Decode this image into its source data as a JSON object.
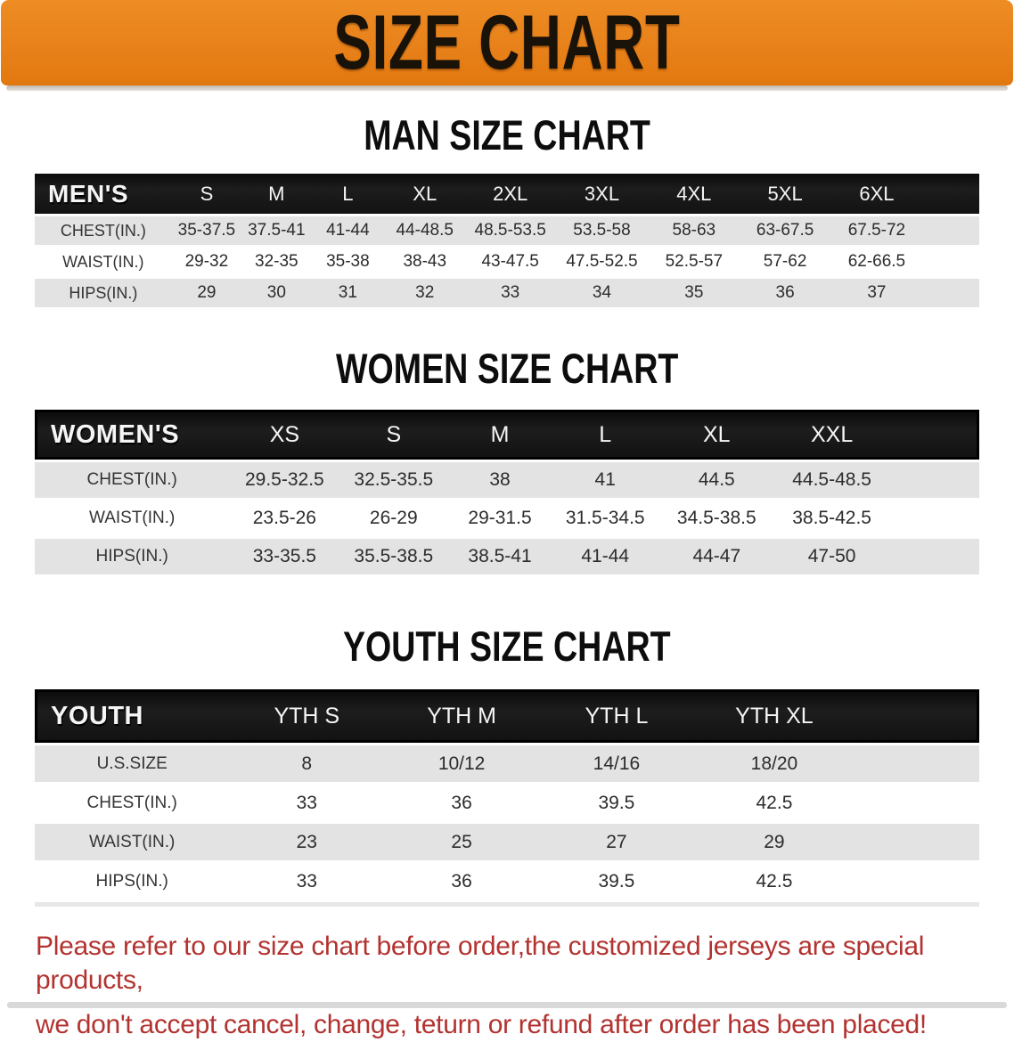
{
  "banner": {
    "title": "SIZE CHART",
    "bg_color": "#E8811A",
    "text_color": "#181208"
  },
  "sections": [
    {
      "heading": "MAN SIZE CHART",
      "header_label": "MEN'S",
      "columns": [
        "S",
        "M",
        "L",
        "XL",
        "2XL",
        "3XL",
        "4XL",
        "5XL",
        "6XL"
      ],
      "rows": [
        {
          "label": "CHEST(IN.)",
          "values": [
            "35-37.5",
            "37.5-41",
            "41-44",
            "44-48.5",
            "48.5-53.5",
            "53.5-58",
            "58-63",
            "63-67.5",
            "67.5-72"
          ]
        },
        {
          "label": "WAIST(IN.)",
          "values": [
            "29-32",
            "32-35",
            "35-38",
            "38-43",
            "43-47.5",
            "47.5-52.5",
            "52.5-57",
            "57-62",
            "62-66.5"
          ]
        },
        {
          "label": "HIPS(IN.)",
          "values": [
            "29",
            "30",
            "31",
            "32",
            "33",
            "34",
            "35",
            "36",
            "37"
          ]
        }
      ]
    },
    {
      "heading": "WOMEN SIZE CHART",
      "header_label": "WOMEN'S",
      "columns": [
        "XS",
        "S",
        "M",
        "L",
        "XL",
        "XXL"
      ],
      "rows": [
        {
          "label": "CHEST(IN.)",
          "values": [
            "29.5-32.5",
            "32.5-35.5",
            "38",
            "41",
            "44.5",
            "44.5-48.5"
          ]
        },
        {
          "label": "WAIST(IN.)",
          "values": [
            "23.5-26",
            "26-29",
            "29-31.5",
            "31.5-34.5",
            "34.5-38.5",
            "38.5-42.5"
          ]
        },
        {
          "label": "HIPS(IN.)",
          "values": [
            "33-35.5",
            "35.5-38.5",
            "38.5-41",
            "41-44",
            "44-47",
            "47-50"
          ]
        }
      ]
    },
    {
      "heading": "YOUTH SIZE CHART",
      "header_label": "YOUTH",
      "columns": [
        "YTH S",
        "YTH M",
        "YTH L",
        "YTH XL"
      ],
      "rows": [
        {
          "label": "U.S.SIZE",
          "values": [
            "8",
            "10/12",
            "14/16",
            "18/20"
          ]
        },
        {
          "label": "CHEST(IN.)",
          "values": [
            "33",
            "36",
            "39.5",
            "42.5"
          ]
        },
        {
          "label": "WAIST(IN.)",
          "values": [
            "23",
            "25",
            "27",
            "29"
          ]
        },
        {
          "label": "HIPS(IN.)",
          "values": [
            "33",
            "36",
            "39.5",
            "42.5"
          ]
        }
      ]
    }
  ],
  "footer": {
    "line1": "Please refer to our size chart before order,the customized jerseys are special products,",
    "line2": "we don't accept cancel, change, teturn or refund after order has been placed!",
    "text_color": "#B23330"
  }
}
